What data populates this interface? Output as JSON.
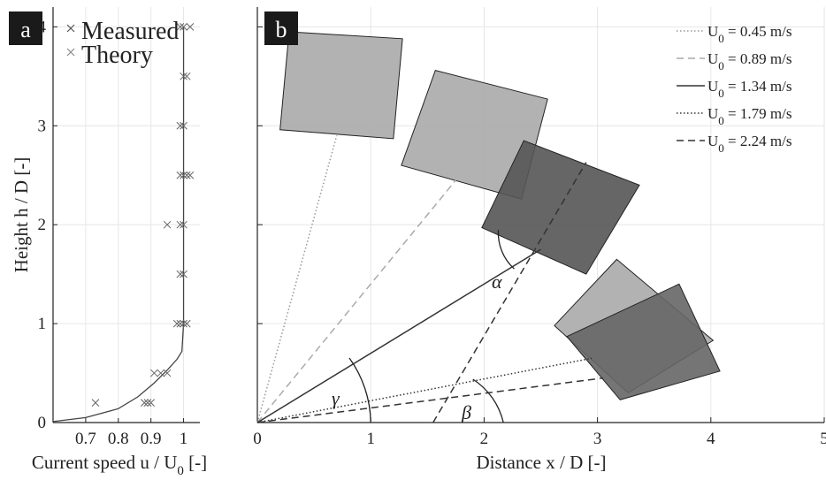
{
  "chart_data": [
    {
      "panel_label": "a",
      "type": "scatter+line",
      "xlabel_main": "Current speed u / U",
      "xlabel_sub": "0",
      "xlabel_tail": " [-]",
      "ylabel": "Height h / D [-]",
      "xlim": [
        0.6,
        1.05
      ],
      "ylim": [
        0,
        4.2
      ],
      "xticks": [
        "0.7",
        "0.8",
        "0.9",
        "1"
      ],
      "xtick_values": [
        0.7,
        0.8,
        0.9,
        1.0
      ],
      "yticks": [
        "0",
        "1",
        "2",
        "3",
        "4"
      ],
      "ytick_values": [
        0,
        1,
        2,
        3,
        4
      ],
      "legend": [
        {
          "name": "Measured",
          "marker": "x",
          "color": "#555555"
        },
        {
          "name": "Theory",
          "marker": "x",
          "color": "#888888"
        }
      ],
      "measured": [
        [
          0.73,
          0.2
        ],
        [
          0.88,
          0.2
        ],
        [
          0.9,
          0.2
        ],
        [
          0.89,
          0.2
        ],
        [
          0.91,
          0.5
        ],
        [
          0.93,
          0.5
        ],
        [
          0.95,
          0.5
        ],
        [
          0.98,
          1.0
        ],
        [
          0.99,
          1.0
        ],
        [
          1.0,
          1.0
        ],
        [
          1.01,
          1.0
        ],
        [
          0.99,
          1.5
        ],
        [
          1.0,
          1.5
        ],
        [
          0.95,
          2.0
        ],
        [
          1.0,
          2.0
        ],
        [
          0.99,
          2.0
        ],
        [
          0.99,
          2.5
        ],
        [
          1.0,
          2.5
        ],
        [
          1.01,
          2.5
        ],
        [
          1.02,
          2.5
        ],
        [
          1.0,
          3.0
        ],
        [
          0.99,
          3.0
        ],
        [
          1.0,
          3.5
        ],
        [
          1.01,
          3.5
        ],
        [
          0.99,
          4.0
        ],
        [
          1.0,
          4.0
        ],
        [
          1.02,
          4.0
        ]
      ],
      "theory": [
        [
          0.6,
          0.01
        ],
        [
          0.7,
          0.05
        ],
        [
          0.8,
          0.14
        ],
        [
          0.86,
          0.26
        ],
        [
          0.91,
          0.4
        ],
        [
          0.95,
          0.53
        ],
        [
          0.98,
          0.64
        ],
        [
          0.995,
          0.72
        ],
        [
          1.0,
          1.0
        ],
        [
          1.0,
          4.0
        ]
      ]
    },
    {
      "panel_label": "b",
      "type": "line",
      "xlabel": "Distance x / D [-]",
      "xlim": [
        0,
        5
      ],
      "ylim": [
        0,
        4.2
      ],
      "xticks": [
        "0",
        "1",
        "2",
        "3",
        "4",
        "5"
      ],
      "xtick_values": [
        0,
        1,
        2,
        3,
        4,
        5
      ],
      "yticks": [
        "0",
        "1",
        "2",
        "3",
        "4"
      ],
      "ytick_values": [
        0,
        1,
        2,
        3,
        4
      ],
      "series": [
        {
          "name": "U",
          "sub": "0",
          "value": " = 0.45 m/s",
          "style": "dotted",
          "color": "#999999",
          "x": [
            0,
            0.7
          ],
          "y": [
            0,
            2.9
          ]
        },
        {
          "name": "U",
          "sub": "0",
          "value": " = 0.89 m/s",
          "style": "dashed",
          "color": "#aaaaaa",
          "x": [
            0,
            1.75
          ],
          "y": [
            0,
            2.45
          ]
        },
        {
          "name": "U",
          "sub": "0",
          "value": " = 1.34 m/s",
          "style": "solid",
          "color": "#333333",
          "x": [
            0,
            2.5
          ],
          "y": [
            0,
            1.75
          ]
        },
        {
          "name": "U",
          "sub": "0",
          "value": " = 1.79 m/s",
          "style": "dotted",
          "color": "#333333",
          "x": [
            0,
            2.95
          ],
          "y": [
            0,
            0.65
          ]
        },
        {
          "name": "U",
          "sub": "0",
          "value": " = 2.24 m/s",
          "style": "dashed",
          "color": "#333333",
          "x": [
            0,
            3.05
          ],
          "y": [
            0,
            0.45
          ]
        }
      ],
      "extra_line": {
        "style": "dashed",
        "color": "#333333",
        "x": [
          1.55,
          2.9
        ],
        "y": [
          0,
          2.63
        ]
      },
      "plates": [
        {
          "fill": "#aaaaaa",
          "points": [
            [
              0.28,
              3.95
            ],
            [
              1.28,
              3.88
            ],
            [
              1.2,
              2.87
            ],
            [
              0.2,
              2.96
            ]
          ]
        },
        {
          "fill": "#aaaaaa",
          "points": [
            [
              1.57,
              3.56
            ],
            [
              2.56,
              3.27
            ],
            [
              2.33,
              2.26
            ],
            [
              1.27,
              2.6
            ]
          ]
        },
        {
          "fill": "#555555",
          "points": [
            [
              2.35,
              2.85
            ],
            [
              3.37,
              2.4
            ],
            [
              2.9,
              1.5
            ],
            [
              1.98,
              1.97
            ]
          ]
        },
        {
          "fill": "#aaaaaa",
          "points": [
            [
              3.17,
              1.65
            ],
            [
              4.02,
              0.83
            ],
            [
              3.27,
              0.3
            ],
            [
              2.62,
              0.98
            ]
          ]
        },
        {
          "fill": "#666666",
          "points": [
            [
              3.72,
              1.4
            ],
            [
              4.08,
              0.52
            ],
            [
              3.2,
              0.23
            ],
            [
              2.73,
              0.87
            ]
          ]
        }
      ],
      "angles": [
        {
          "label": "α"
        },
        {
          "label": "γ"
        },
        {
          "label": "β"
        }
      ]
    }
  ]
}
